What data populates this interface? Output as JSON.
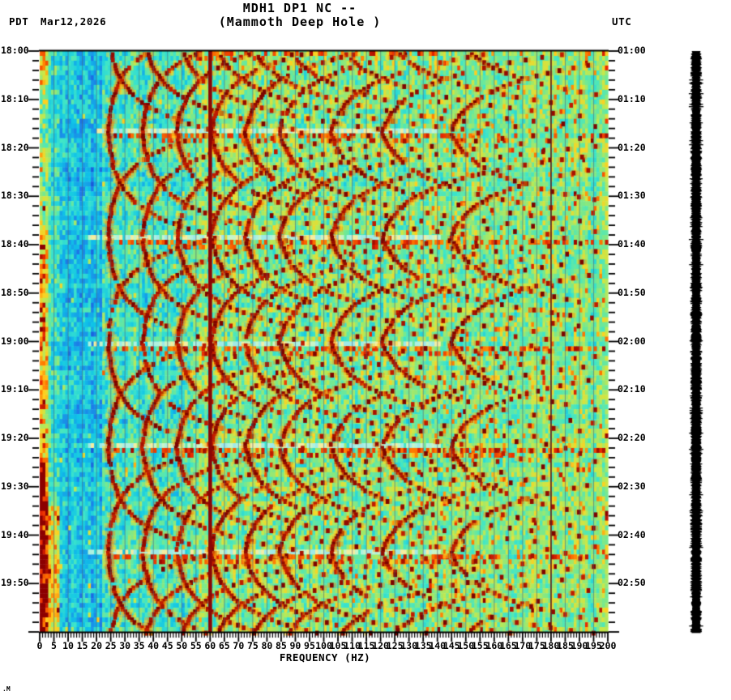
{
  "header": {
    "title_line1": "MDH1 DP1 NC --",
    "title_line2": "(Mammoth Deep Hole )",
    "left_timezone": "PDT",
    "date": "Mar12,2026",
    "right_timezone": "UTC"
  },
  "footer": {
    "corner_mark": ".M"
  },
  "chart_data": {
    "type": "heatmap",
    "subtype": "seismic-spectrogram",
    "station": "MDH1 DP1 NC --",
    "station_name": "Mammoth Deep Hole",
    "xlabel": "FREQUENCY (HZ)",
    "x_range_hz": [
      0,
      200
    ],
    "x_major_tick_hz": 5,
    "x_minor_tick_hz": 1,
    "x_tick_labels": [
      "0",
      "5",
      "10",
      "15",
      "20",
      "25",
      "30",
      "35",
      "40",
      "45",
      "50",
      "55",
      "60",
      "65",
      "70",
      "75",
      "80",
      "85",
      "90",
      "95",
      "100",
      "105",
      "110",
      "115",
      "120",
      "125",
      "130",
      "135",
      "140",
      "145",
      "150",
      "155",
      "160",
      "165",
      "170",
      "175",
      "180",
      "185",
      "190",
      "195",
      "200"
    ],
    "time_axis": {
      "start_label_left": "18:00",
      "start_label_right": "01:00",
      "duration_min": 120,
      "major_tick_min": 10,
      "minor_tick_min": 2,
      "left_labels": [
        "18:00",
        "18:10",
        "18:20",
        "18:30",
        "18:40",
        "18:50",
        "19:00",
        "19:10",
        "19:20",
        "19:30",
        "19:40",
        "19:50"
      ],
      "right_labels": [
        "01:00",
        "01:10",
        "01:20",
        "01:30",
        "01:40",
        "01:50",
        "02:00",
        "02:10",
        "02:20",
        "02:30",
        "02:40",
        "02:50"
      ]
    },
    "features": {
      "power_line_hz": 60,
      "power_line_harmonic_hz": 180,
      "cycle_start_min": [
        -5.5,
        16.2,
        37.9,
        59.6,
        81.3,
        103.0
      ],
      "cycle_period_min": 21.7,
      "glide_min_hz": 23.5,
      "glide_span_hz": 40,
      "harmonic_ratios": [
        1,
        1.5,
        2,
        2.5,
        3,
        3.5,
        4.25,
        5,
        6
      ],
      "low_freq_band_max_hz": 6,
      "quiet_band_hz": [
        3,
        22
      ]
    },
    "palette_stops": [
      {
        "p": 0.0,
        "c": "#1433c8"
      },
      {
        "p": 0.14,
        "c": "#1d7ae8"
      },
      {
        "p": 0.3,
        "c": "#0fc4e8"
      },
      {
        "p": 0.44,
        "c": "#3fe6c8"
      },
      {
        "p": 0.55,
        "c": "#7ce88a"
      },
      {
        "p": 0.66,
        "c": "#c8e84a"
      },
      {
        "p": 0.76,
        "c": "#ffd01e"
      },
      {
        "p": 0.86,
        "c": "#ff7a00"
      },
      {
        "p": 0.94,
        "c": "#e82800"
      },
      {
        "p": 1.0,
        "c": "#8c0000"
      }
    ],
    "gridline_color": "rgba(72,98,122,0.55)",
    "power_line_color": "#8a0606",
    "harmonic_line_color": "#5c1414",
    "pale_stripe_colors": [
      "#aef2e0",
      "#c8f5c8",
      "#f5eda0",
      "#9feae8"
    ],
    "streak_colors": [
      "#7c0400",
      "#930b00",
      "#a81200",
      "#c01c00"
    ],
    "trace_bar_color": "#000000"
  }
}
